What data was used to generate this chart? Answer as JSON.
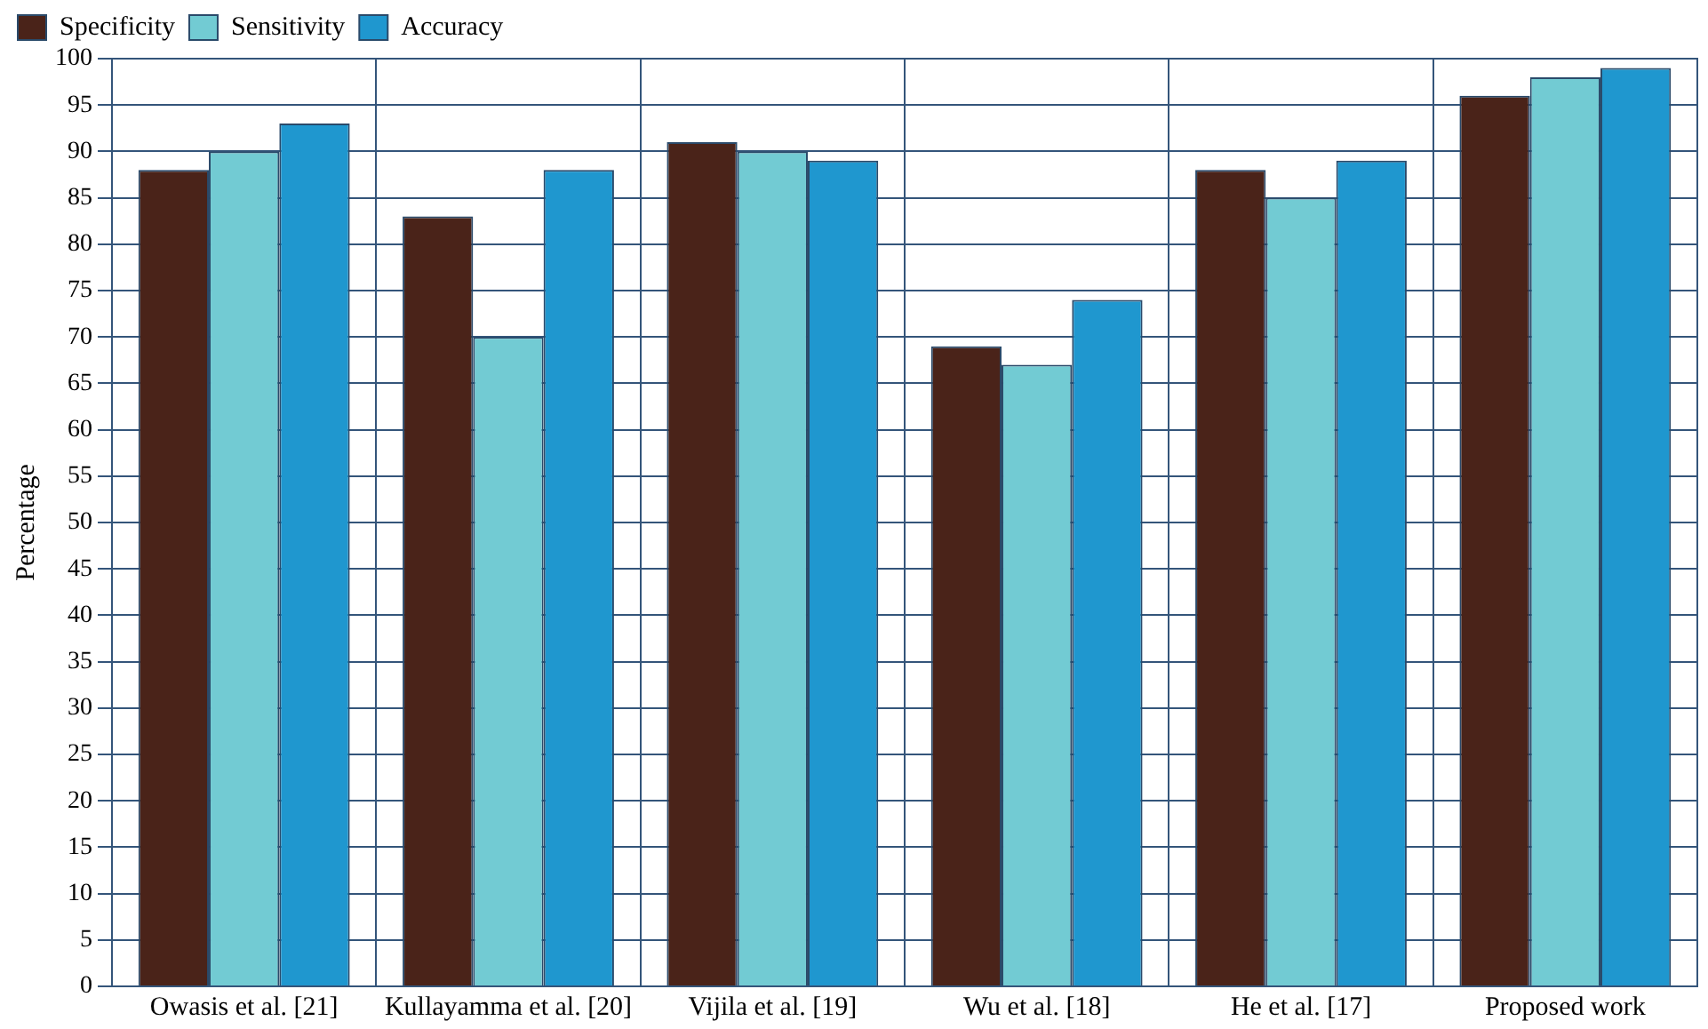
{
  "chart_data": {
    "type": "bar",
    "ylabel": "Percentage",
    "categories": [
      "Owasis et al. [21]",
      "Kullayamma et al. [20]",
      "Vijila et al. [19]",
      "Wu et al. [18]",
      "He et al. [17]",
      "Proposed work"
    ],
    "series": [
      {
        "name": "Specificity",
        "color": "#4a2319",
        "values": [
          88,
          83,
          91,
          69,
          88,
          96
        ]
      },
      {
        "name": "Sensitivity",
        "color": "#72cbd3",
        "values": [
          90,
          70,
          90,
          67,
          85,
          98
        ]
      },
      {
        "name": "Accuracy",
        "color": "#1f97cf",
        "values": [
          93,
          88,
          89,
          74,
          89,
          99
        ]
      }
    ],
    "ylim": [
      0,
      100
    ],
    "yticks": [
      0,
      5,
      10,
      15,
      20,
      25,
      30,
      35,
      40,
      45,
      50,
      55,
      60,
      65,
      70,
      75,
      80,
      85,
      90,
      95,
      100
    ],
    "grid": true,
    "legend": "top left"
  }
}
